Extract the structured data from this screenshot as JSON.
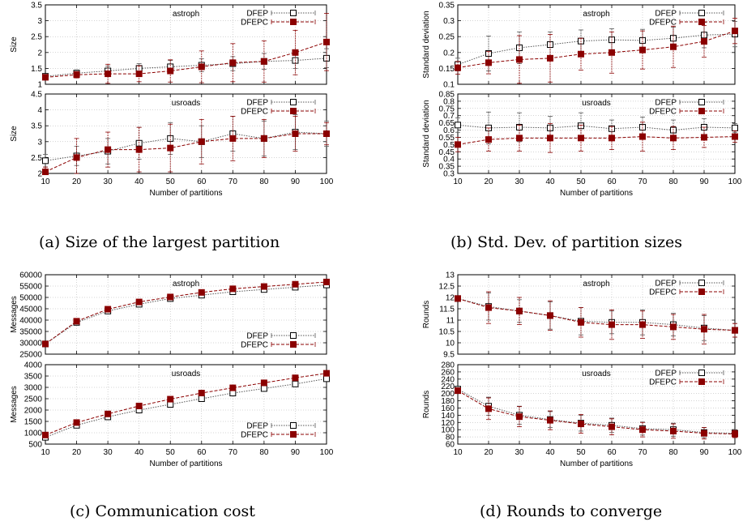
{
  "captions": {
    "a": "(a) Size of the largest partition",
    "b": "(b) Std. Dev. of partition sizes",
    "c": "(c) Communication cost",
    "d": "(d) Rounds to converge"
  },
  "colors": {
    "dfep": "#555555",
    "dfepc": "#8b0000",
    "frame": "#000000",
    "grid": "#aaaaaa"
  },
  "chart_data": [
    {
      "type": "line",
      "panel": "a",
      "title": "astroph",
      "xlabel": "",
      "ylabel": "Size",
      "x": [
        10,
        20,
        30,
        40,
        50,
        60,
        70,
        80,
        90,
        100
      ],
      "xlim": [
        10,
        100
      ],
      "ylim": [
        1,
        3.5
      ],
      "yticks": [
        1,
        1.5,
        2,
        2.5,
        3,
        3.5
      ],
      "grid": true,
      "legend": "top-right",
      "series": [
        {
          "name": "DFEP",
          "values": [
            1.25,
            1.35,
            1.42,
            1.5,
            1.55,
            1.6,
            1.65,
            1.72,
            1.75,
            1.82
          ],
          "err": [
            0.05,
            0.1,
            0.15,
            0.15,
            0.2,
            0.2,
            0.22,
            0.25,
            0.25,
            0.3
          ]
        },
        {
          "name": "DFEPC",
          "values": [
            1.22,
            1.3,
            1.33,
            1.33,
            1.42,
            1.55,
            1.68,
            1.72,
            2.0,
            2.33
          ],
          "err": [
            0.05,
            0.1,
            0.3,
            0.25,
            0.35,
            0.5,
            0.6,
            0.65,
            0.7,
            0.9
          ]
        }
      ]
    },
    {
      "type": "line",
      "panel": "a",
      "title": "usroads",
      "xlabel": "Number of partitions",
      "ylabel": "Size",
      "x": [
        10,
        20,
        30,
        40,
        50,
        60,
        70,
        80,
        90,
        100
      ],
      "xlim": [
        10,
        100
      ],
      "ylim": [
        2,
        4.5
      ],
      "yticks": [
        2,
        2.5,
        3,
        3.5,
        4,
        4.5
      ],
      "xticks": [
        10,
        20,
        30,
        40,
        50,
        60,
        70,
        80,
        90,
        100
      ],
      "grid": true,
      "legend": "top-right",
      "series": [
        {
          "name": "DFEP",
          "values": [
            2.4,
            2.55,
            2.7,
            2.95,
            3.1,
            3.0,
            3.25,
            3.1,
            3.3,
            3.25
          ],
          "err": [
            0.2,
            0.3,
            0.4,
            0.5,
            0.5,
            0.5,
            0.55,
            0.55,
            0.55,
            0.4
          ]
        },
        {
          "name": "DFEPC",
          "values": [
            2.05,
            2.5,
            2.75,
            2.75,
            2.8,
            3.0,
            3.1,
            3.1,
            3.25,
            3.25
          ],
          "err": [
            0.15,
            0.6,
            0.55,
            0.7,
            0.75,
            0.7,
            0.7,
            0.6,
            0.55,
            0.35
          ]
        }
      ]
    },
    {
      "type": "line",
      "panel": "b",
      "title": "astroph",
      "xlabel": "",
      "ylabel": "Standard deviation",
      "x": [
        10,
        20,
        30,
        40,
        50,
        60,
        70,
        80,
        90,
        100
      ],
      "xlim": [
        10,
        100
      ],
      "ylim": [
        0.1,
        0.35
      ],
      "yticks": [
        0.1,
        0.15,
        0.2,
        0.25,
        0.3,
        0.35
      ],
      "grid": true,
      "legend": "top-right",
      "series": [
        {
          "name": "DFEP",
          "values": [
            0.162,
            0.197,
            0.215,
            0.225,
            0.236,
            0.24,
            0.238,
            0.245,
            0.255,
            0.258
          ],
          "err": [
            0.02,
            0.055,
            0.05,
            0.04,
            0.035,
            0.035,
            0.035,
            0.035,
            0.04,
            0.04
          ]
        },
        {
          "name": "DFEPC",
          "values": [
            0.152,
            0.168,
            0.178,
            0.182,
            0.195,
            0.2,
            0.208,
            0.218,
            0.235,
            0.268
          ],
          "err": [
            0.02,
            0.035,
            0.075,
            0.075,
            0.05,
            0.065,
            0.06,
            0.065,
            0.05,
            0.04
          ]
        }
      ]
    },
    {
      "type": "line",
      "panel": "b",
      "title": "usroads",
      "xlabel": "Number of partitions",
      "ylabel": "Standard deviation",
      "x": [
        10,
        20,
        30,
        40,
        50,
        60,
        70,
        80,
        90,
        100
      ],
      "xlim": [
        10,
        100
      ],
      "ylim": [
        0.3,
        0.85
      ],
      "yticks": [
        0.3,
        0.35,
        0.4,
        0.45,
        0.5,
        0.55,
        0.6,
        0.65,
        0.7,
        0.75,
        0.8,
        0.85
      ],
      "xticks": [
        10,
        20,
        30,
        40,
        50,
        60,
        70,
        80,
        90,
        100
      ],
      "grid": true,
      "legend": "top-right",
      "series": [
        {
          "name": "DFEP",
          "values": [
            0.635,
            0.615,
            0.62,
            0.615,
            0.63,
            0.61,
            0.62,
            0.6,
            0.62,
            0.615
          ],
          "err": [
            0.05,
            0.11,
            0.1,
            0.08,
            0.09,
            0.06,
            0.07,
            0.07,
            0.06,
            0.03
          ]
        },
        {
          "name": "DFEPC",
          "values": [
            0.5,
            0.535,
            0.545,
            0.545,
            0.545,
            0.545,
            0.555,
            0.545,
            0.55,
            0.555
          ],
          "err": [
            0.05,
            0.08,
            0.09,
            0.1,
            0.09,
            0.08,
            0.1,
            0.08,
            0.07,
            0.04
          ]
        }
      ]
    },
    {
      "type": "line",
      "panel": "c",
      "title": "astroph",
      "xlabel": "",
      "ylabel": "Messages",
      "x": [
        10,
        20,
        30,
        40,
        50,
        60,
        70,
        80,
        90,
        100
      ],
      "xlim": [
        10,
        100
      ],
      "ylim": [
        25000,
        60000
      ],
      "yticks": [
        25000,
        30000,
        35000,
        40000,
        45000,
        50000,
        55000,
        60000
      ],
      "grid": true,
      "legend": "bottom-right",
      "series": [
        {
          "name": "DFEP",
          "values": [
            29500,
            39000,
            44000,
            47000,
            49500,
            51000,
            52500,
            53500,
            54500,
            55500
          ],
          "err": [
            300,
            400,
            400,
            400,
            400,
            400,
            400,
            400,
            400,
            400
          ]
        },
        {
          "name": "DFEPC",
          "values": [
            29500,
            39500,
            44800,
            48000,
            50200,
            52200,
            53800,
            54800,
            55800,
            56800
          ],
          "err": [
            300,
            400,
            400,
            400,
            400,
            400,
            400,
            400,
            400,
            400
          ]
        }
      ]
    },
    {
      "type": "line",
      "panel": "c",
      "title": "usroads",
      "xlabel": "Number of partitions",
      "ylabel": "Messages",
      "x": [
        10,
        20,
        30,
        40,
        50,
        60,
        70,
        80,
        90,
        100
      ],
      "xlim": [
        10,
        100
      ],
      "ylim": [
        500,
        4000
      ],
      "yticks": [
        500,
        1000,
        1500,
        2000,
        2500,
        3000,
        3500,
        4000
      ],
      "xticks": [
        10,
        20,
        30,
        40,
        50,
        60,
        70,
        80,
        90,
        100
      ],
      "grid": true,
      "legend": "bottom-right",
      "series": [
        {
          "name": "DFEP",
          "values": [
            800,
            1330,
            1700,
            2000,
            2250,
            2500,
            2750,
            2950,
            3150,
            3380
          ],
          "err": [
            30,
            30,
            30,
            30,
            30,
            30,
            30,
            30,
            30,
            30
          ]
        },
        {
          "name": "DFEPC",
          "values": [
            900,
            1450,
            1830,
            2180,
            2480,
            2750,
            2980,
            3200,
            3420,
            3620
          ],
          "err": [
            30,
            30,
            30,
            30,
            30,
            30,
            30,
            30,
            30,
            30
          ]
        }
      ]
    },
    {
      "type": "line",
      "panel": "d",
      "title": "astroph",
      "xlabel": "",
      "ylabel": "Rounds",
      "x": [
        10,
        20,
        30,
        40,
        50,
        60,
        70,
        80,
        90,
        100
      ],
      "xlim": [
        10,
        100
      ],
      "ylim": [
        9.5,
        13
      ],
      "yticks": [
        9.5,
        10,
        10.5,
        11,
        11.5,
        12,
        12.5,
        13
      ],
      "grid": true,
      "legend": "top-right",
      "series": [
        {
          "name": "DFEP",
          "values": [
            11.95,
            11.6,
            11.4,
            11.2,
            10.95,
            10.9,
            10.9,
            10.8,
            10.65,
            10.55
          ],
          "err": [
            0.1,
            0.6,
            0.5,
            0.6,
            0.6,
            0.5,
            0.55,
            0.5,
            0.55,
            0.3
          ]
        },
        {
          "name": "DFEPC",
          "values": [
            11.95,
            11.55,
            11.4,
            11.2,
            10.9,
            10.8,
            10.8,
            10.7,
            10.6,
            10.55
          ],
          "err": [
            0.1,
            0.7,
            0.6,
            0.65,
            0.65,
            0.65,
            0.6,
            0.55,
            0.65,
            0.3
          ]
        }
      ]
    },
    {
      "type": "line",
      "panel": "d",
      "title": "usroads",
      "xlabel": "Number of partitions",
      "ylabel": "Rounds",
      "x": [
        10,
        20,
        30,
        40,
        50,
        60,
        70,
        80,
        90,
        100
      ],
      "xlim": [
        10,
        100
      ],
      "ylim": [
        60,
        280
      ],
      "yticks": [
        60,
        80,
        100,
        120,
        140,
        160,
        180,
        200,
        220,
        240,
        260,
        280
      ],
      "xticks": [
        10,
        20,
        30,
        40,
        50,
        60,
        70,
        80,
        90,
        100
      ],
      "grid": true,
      "legend": "top-right",
      "series": [
        {
          "name": "DFEP",
          "values": [
            212,
            165,
            140,
            128,
            118,
            112,
            103,
            100,
            92,
            90
          ],
          "err": [
            8,
            25,
            25,
            22,
            22,
            20,
            18,
            18,
            14,
            10
          ]
        },
        {
          "name": "DFEPC",
          "values": [
            208,
            158,
            136,
            126,
            116,
            108,
            100,
            96,
            90,
            88
          ],
          "err": [
            8,
            30,
            28,
            26,
            26,
            22,
            20,
            20,
            16,
            10
          ]
        }
      ]
    }
  ]
}
